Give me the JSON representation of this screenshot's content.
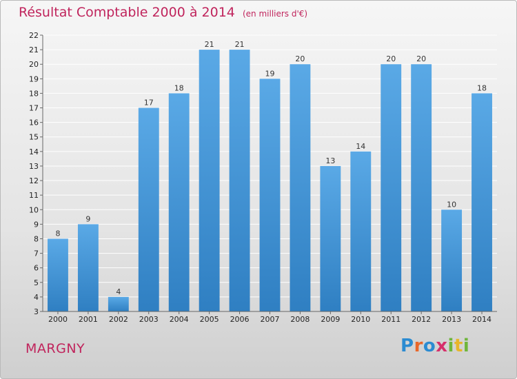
{
  "chart_data": {
    "type": "bar",
    "title": "Résultat Comptable 2000 à 2014",
    "subtitle": "(en milliers d'€)",
    "categories": [
      "2000",
      "2001",
      "2002",
      "2003",
      "2004",
      "2005",
      "2006",
      "2007",
      "2008",
      "2009",
      "2010",
      "2011",
      "2012",
      "2013",
      "2014"
    ],
    "values": [
      8,
      9,
      4,
      17,
      18,
      21,
      21,
      19,
      20,
      13,
      14,
      20,
      20,
      10,
      18
    ],
    "xlabel": "",
    "ylabel": "",
    "ylim": [
      3,
      22
    ],
    "yticks": [
      3,
      4,
      5,
      6,
      7,
      8,
      9,
      10,
      11,
      12,
      13,
      14,
      15,
      16,
      17,
      18,
      19,
      20,
      21,
      22
    ],
    "grid": true,
    "bar_color": "#5aa9e6",
    "bar_color_dark": "#2f7fc2"
  },
  "page": {
    "commune": "MARGNY",
    "logo_letters": [
      {
        "char": "P",
        "color": "#2b8bd1"
      },
      {
        "char": "r",
        "color": "#e8672a"
      },
      {
        "char": "o",
        "color": "#2b8bd1"
      },
      {
        "char": "x",
        "color": "#d62f6b"
      },
      {
        "char": "i",
        "color": "#6fb63b"
      },
      {
        "char": "t",
        "color": "#e8b52a"
      },
      {
        "char": "i",
        "color": "#6fb63b"
      }
    ]
  }
}
